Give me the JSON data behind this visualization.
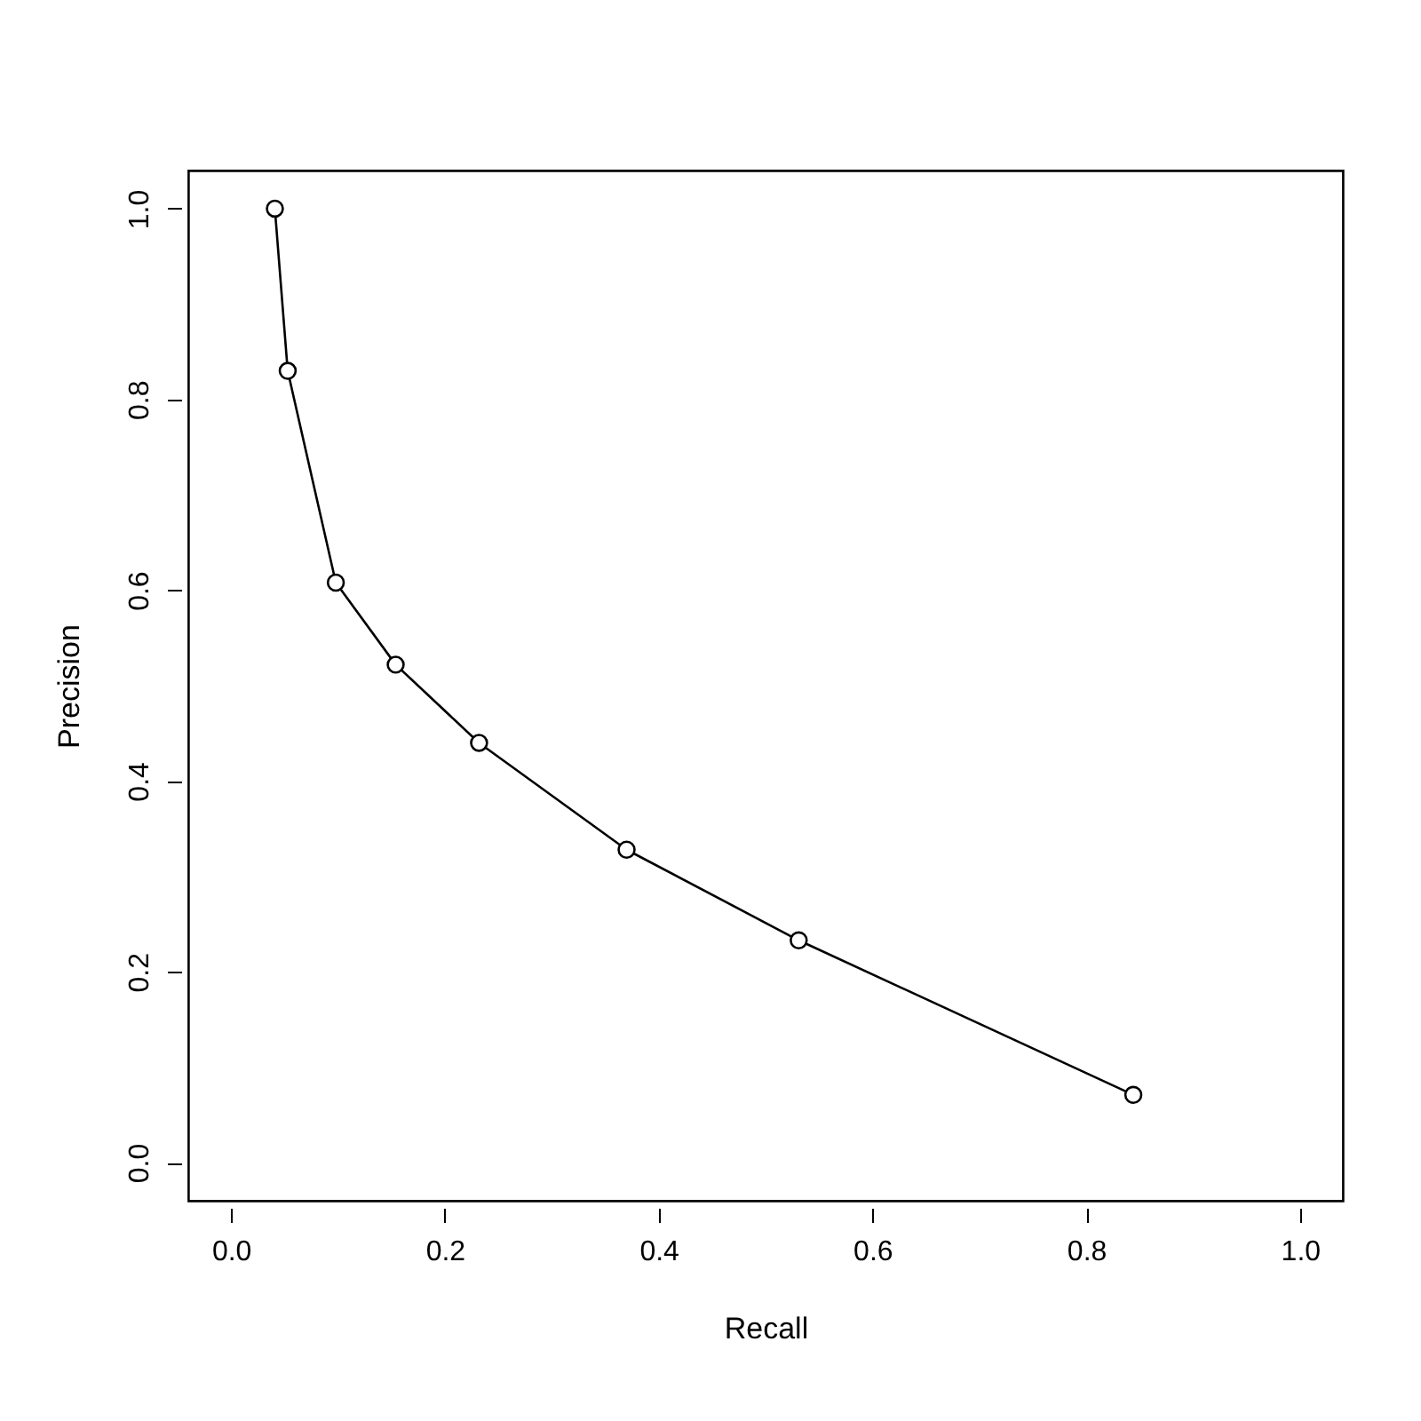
{
  "chart_data": {
    "type": "line",
    "xlabel": "Recall",
    "ylabel": "Precision",
    "x": [
      0.041,
      0.053,
      0.098,
      0.154,
      0.232,
      0.37,
      0.531,
      0.844
    ],
    "series": [
      {
        "color": "#000000",
        "values": [
          1.0,
          0.83,
          0.608,
          0.522,
          0.44,
          0.328,
          0.233,
          0.071
        ]
      }
    ],
    "xlim": [
      -0.04,
      1.04
    ],
    "ylim": [
      -0.04,
      1.04
    ],
    "xticks": [
      {
        "value": 0,
        "label": "0.0"
      },
      {
        "value": 0.2,
        "label": "0.2"
      },
      {
        "value": 0.4,
        "label": "0.4"
      },
      {
        "value": 0.6,
        "label": "0.6"
      },
      {
        "value": 0.8,
        "label": "0.8"
      },
      {
        "value": 1,
        "label": "1.0"
      }
    ],
    "yticks": [
      {
        "value": 0,
        "label": "0.0"
      },
      {
        "value": 0.2,
        "label": "0.2"
      },
      {
        "value": 0.4,
        "label": "0.4"
      },
      {
        "value": 0.6,
        "label": "0.6"
      },
      {
        "value": 0.8,
        "label": "0.8"
      },
      {
        "value": 1,
        "label": "1.0"
      }
    ],
    "marker": "circle",
    "line_style": "solid"
  }
}
